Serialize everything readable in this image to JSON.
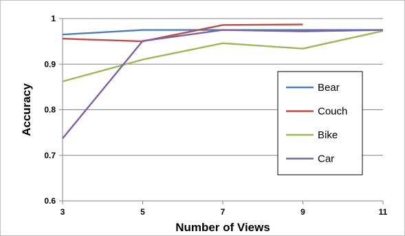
{
  "chart_data": {
    "type": "line",
    "title": "",
    "xlabel": "Number of Views",
    "ylabel": "Accuracy",
    "x": [
      3,
      5,
      7,
      9,
      11
    ],
    "x_ticks": [
      "3",
      "5",
      "7",
      "9",
      "11"
    ],
    "y_ticks": [
      "0.6",
      "0.7",
      "0.8",
      "0.9",
      "1"
    ],
    "xlim": [
      3,
      11
    ],
    "ylim": [
      0.6,
      1.0
    ],
    "grid": "horizontal",
    "legend_position": "right",
    "series": [
      {
        "name": "Bear",
        "color": "#4a7ebb",
        "values": [
          0.965,
          0.975,
          0.975,
          0.975,
          0.975
        ]
      },
      {
        "name": "Couch",
        "color": "#be4b48",
        "values": [
          0.956,
          0.95,
          0.986,
          0.987,
          null
        ]
      },
      {
        "name": "Bike",
        "color": "#98b954",
        "values": [
          0.862,
          0.91,
          0.946,
          0.934,
          0.973
        ]
      },
      {
        "name": "Car",
        "color": "#7d60a0",
        "values": [
          0.737,
          0.951,
          0.975,
          0.972,
          0.975
        ]
      }
    ]
  }
}
